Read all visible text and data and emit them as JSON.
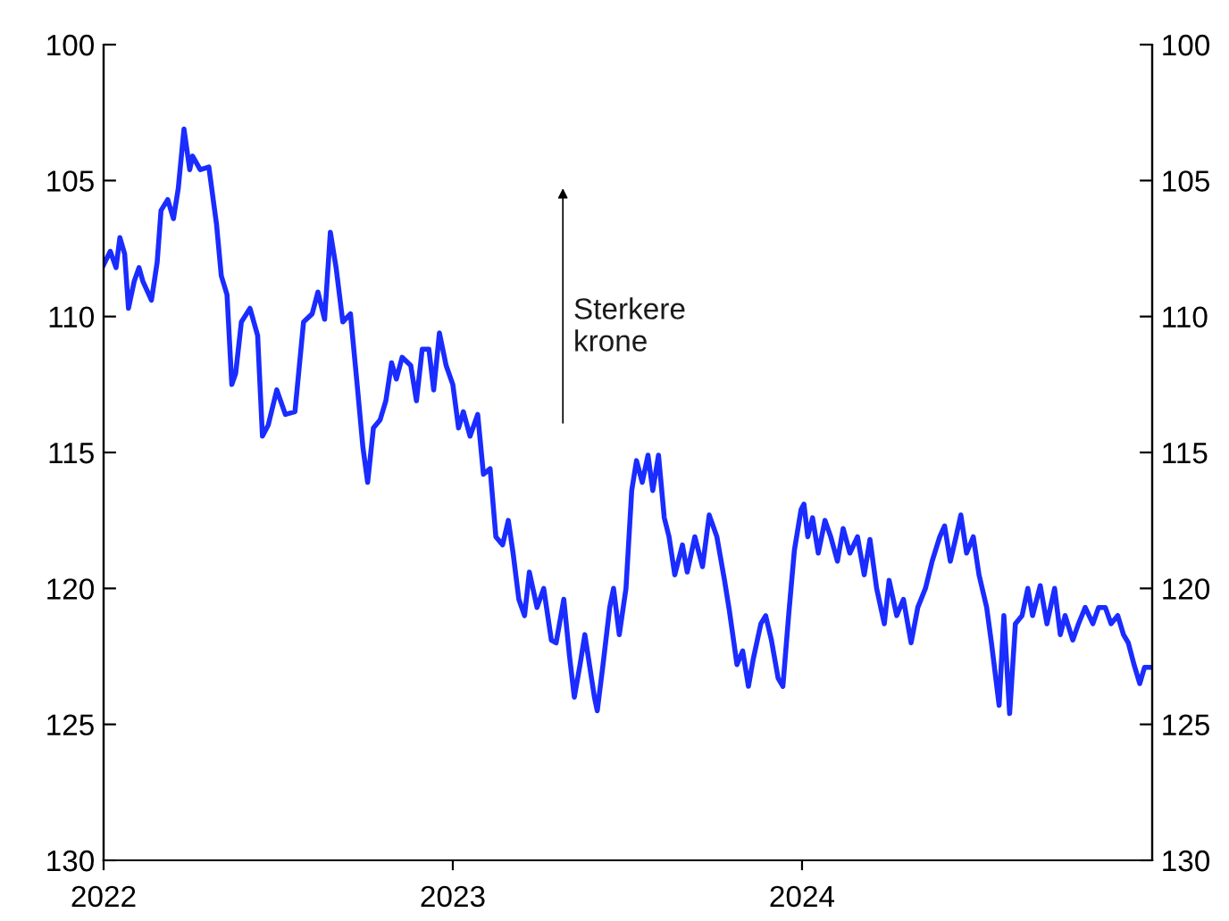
{
  "chart_data": {
    "type": "line",
    "annotations": [
      "Sterkere\nkrone"
    ],
    "x": [
      "2022-01-01",
      "2022-01-08",
      "2022-01-14",
      "2022-01-18",
      "2022-01-23",
      "2022-01-27",
      "2022-02-02",
      "2022-02-07",
      "2022-02-11",
      "2022-02-20",
      "2022-02-26",
      "2022-03-02",
      "2022-03-09",
      "2022-03-15",
      "2022-03-20",
      "2022-03-26",
      "2022-04-01",
      "2022-04-04",
      "2022-04-12",
      "2022-04-21",
      "2022-04-29",
      "2022-05-04",
      "2022-05-10",
      "2022-05-15",
      "2022-05-19",
      "2022-05-25",
      "2022-06-03",
      "2022-06-11",
      "2022-06-16",
      "2022-06-22",
      "2022-07-01",
      "2022-07-10",
      "2022-07-20",
      "2022-07-29",
      "2022-08-07",
      "2022-08-13",
      "2022-08-20",
      "2022-08-26",
      "2022-09-01",
      "2022-09-08",
      "2022-09-16",
      "2022-09-23",
      "2022-09-29",
      "2022-10-04",
      "2022-10-10",
      "2022-10-17",
      "2022-10-23",
      "2022-10-29",
      "2022-11-03",
      "2022-11-09",
      "2022-11-18",
      "2022-11-24",
      "2022-11-30",
      "2022-12-07",
      "2022-12-12",
      "2022-12-18",
      "2022-12-25",
      "2023-01-01",
      "2023-01-07",
      "2023-01-12",
      "2023-01-19",
      "2023-01-27",
      "2023-02-02",
      "2023-02-09",
      "2023-02-15",
      "2023-02-22",
      "2023-02-28",
      "2023-03-05",
      "2023-03-11",
      "2023-03-17",
      "2023-03-22",
      "2023-03-30",
      "2023-04-06",
      "2023-04-14",
      "2023-04-19",
      "2023-04-27",
      "2023-05-03",
      "2023-05-08",
      "2023-05-14",
      "2023-05-19",
      "2023-05-29",
      "2023-06-01",
      "2023-06-07",
      "2023-06-14",
      "2023-06-18",
      "2023-06-24",
      "2023-07-01",
      "2023-07-07",
      "2023-07-12",
      "2023-07-18",
      "2023-07-24",
      "2023-07-29",
      "2023-08-04",
      "2023-08-10",
      "2023-08-15",
      "2023-08-21",
      "2023-08-29",
      "2023-09-03",
      "2023-09-11",
      "2023-09-19",
      "2023-09-26",
      "2023-10-04",
      "2023-10-12",
      "2023-10-17",
      "2023-10-25",
      "2023-10-31",
      "2023-11-06",
      "2023-11-11",
      "2023-11-19",
      "2023-11-24",
      "2023-11-30",
      "2023-12-07",
      "2023-12-12",
      "2023-12-18",
      "2023-12-24",
      "2023-12-31",
      "2024-01-03",
      "2024-01-07",
      "2024-01-12",
      "2024-01-18",
      "2024-01-25",
      "2024-01-31",
      "2024-02-07",
      "2024-02-13",
      "2024-02-20",
      "2024-02-28",
      "2024-03-06",
      "2024-03-12",
      "2024-03-19",
      "2024-03-27",
      "2024-04-01",
      "2024-04-09",
      "2024-04-16",
      "2024-04-24",
      "2024-05-01",
      "2024-05-09",
      "2024-05-16",
      "2024-05-24",
      "2024-05-29",
      "2024-06-04",
      "2024-06-10",
      "2024-06-15",
      "2024-06-21",
      "2024-06-28",
      "2024-07-04",
      "2024-07-12",
      "2024-07-17",
      "2024-07-25",
      "2024-07-30",
      "2024-08-05",
      "2024-08-11",
      "2024-08-18",
      "2024-08-24",
      "2024-08-29",
      "2024-09-06",
      "2024-09-13",
      "2024-09-21",
      "2024-09-27",
      "2024-10-02",
      "2024-10-10",
      "2024-10-16",
      "2024-10-23",
      "2024-10-31",
      "2024-11-06",
      "2024-11-13",
      "2024-11-19",
      "2024-11-26",
      "2024-12-02",
      "2024-12-07",
      "2024-12-13",
      "2024-12-19",
      "2024-12-24",
      "2024-12-31"
    ],
    "series": [
      {
        "color": "#1a2cff",
        "values": [
          108.1,
          107.6,
          108.2,
          107.1,
          107.7,
          109.7,
          108.7,
          108.2,
          108.7,
          109.4,
          108.0,
          106.1,
          105.7,
          106.4,
          105.3,
          103.1,
          104.6,
          104.1,
          104.6,
          104.5,
          106.6,
          108.5,
          109.2,
          112.5,
          112.1,
          110.2,
          109.7,
          110.7,
          114.4,
          114.0,
          112.7,
          113.6,
          113.5,
          110.2,
          109.9,
          109.1,
          110.1,
          106.9,
          108.2,
          110.2,
          109.9,
          112.5,
          114.8,
          116.1,
          114.1,
          113.8,
          113.1,
          111.7,
          112.3,
          111.5,
          111.8,
          113.1,
          111.2,
          111.2,
          112.7,
          110.6,
          111.8,
          112.5,
          114.1,
          113.5,
          114.4,
          113.6,
          115.8,
          115.6,
          118.1,
          118.4,
          117.5,
          118.7,
          120.4,
          121.0,
          119.4,
          120.7,
          120.0,
          121.9,
          122.0,
          120.4,
          122.5,
          124.0,
          122.8,
          121.7,
          124.0,
          124.5,
          122.8,
          120.7,
          120.0,
          121.7,
          120.0,
          116.4,
          115.3,
          116.1,
          115.1,
          116.4,
          115.1,
          117.4,
          118.1,
          119.5,
          118.4,
          119.4,
          118.1,
          119.2,
          117.3,
          118.1,
          119.7,
          120.8,
          122.8,
          122.3,
          123.6,
          122.6,
          121.3,
          121.0,
          121.9,
          123.3,
          123.6,
          121.0,
          118.6,
          117.1,
          116.9,
          118.1,
          117.4,
          118.7,
          117.5,
          118.1,
          119.0,
          117.8,
          118.7,
          118.1,
          119.5,
          118.2,
          120.0,
          121.3,
          119.7,
          121.0,
          120.4,
          122.0,
          120.7,
          120.0,
          119.0,
          118.1,
          117.7,
          119.0,
          118.1,
          117.3,
          118.7,
          118.1,
          119.5,
          120.7,
          122.0,
          124.3,
          121.0,
          124.6,
          121.3,
          121.0,
          120.0,
          121.0,
          119.9,
          121.3,
          120.0,
          121.7,
          121.0,
          121.9,
          121.3,
          120.7,
          121.3,
          120.7,
          120.7,
          121.3,
          121.0,
          121.7,
          122.0,
          122.8,
          123.5,
          122.9,
          122.9
        ]
      }
    ],
    "xlim": [
      "2022-01-01",
      "2025-01-01"
    ],
    "xticks": [
      {
        "value": "2022-01-01",
        "label": "2022"
      },
      {
        "value": "2023-01-01",
        "label": "2023"
      },
      {
        "value": "2024-01-01",
        "label": "2024"
      }
    ],
    "ylim": [
      130,
      100
    ],
    "yticks": [
      100,
      105,
      110,
      115,
      120,
      125,
      130
    ],
    "y2lim": [
      130,
      100
    ],
    "y2ticks": [
      100,
      105,
      110,
      115,
      120,
      125,
      130
    ],
    "grid": false,
    "line_style": "solid",
    "marker": "none",
    "legend": false
  }
}
